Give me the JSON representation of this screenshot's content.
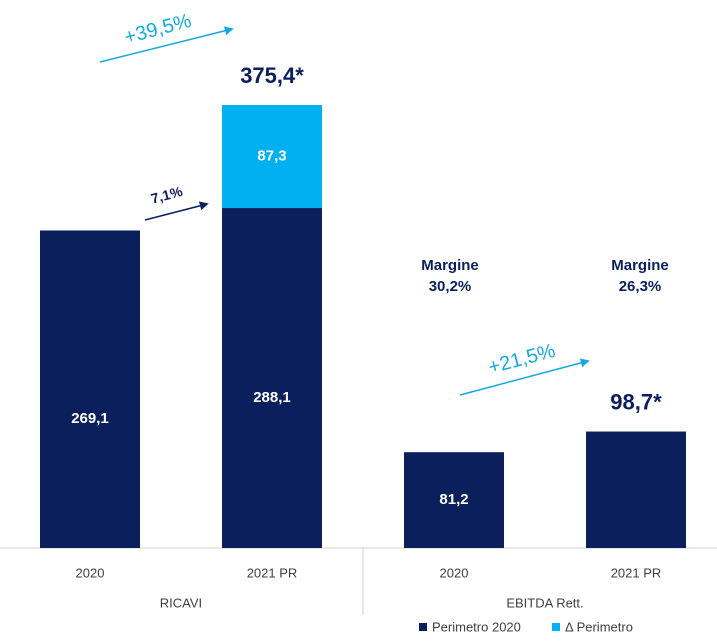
{
  "chart_data": {
    "type": "stacked_bar",
    "categories": [
      "2020",
      "2021 PR",
      "2020",
      "2021 PR"
    ],
    "groups": [
      "RICAVI",
      "EBITDA Rett."
    ],
    "series": [
      {
        "name": "Perimetro 2020",
        "color": "#0a1f5c",
        "values": [
          269.1,
          288.1,
          81.2,
          98.7
        ],
        "value_labels": [
          "269,1",
          "288,1",
          "81,2",
          null
        ]
      },
      {
        "name": "Δ Perimetro",
        "color": "#00b0f0",
        "values": [
          null,
          87.3,
          null,
          null
        ],
        "value_labels": [
          null,
          "87,3",
          null,
          null
        ]
      }
    ],
    "totals": {
      "values": [
        null,
        375.4,
        null,
        98.7
      ],
      "value_labels": [
        null,
        "375,4*",
        null,
        "98,7*"
      ]
    },
    "annotations": [
      "+39,5%",
      "7,1%",
      "+21,5%",
      "Margine",
      "30,2%",
      "Margine",
      "26,3%"
    ],
    "ylim": [
      0,
      400
    ],
    "legend": "bottom-right"
  }
}
